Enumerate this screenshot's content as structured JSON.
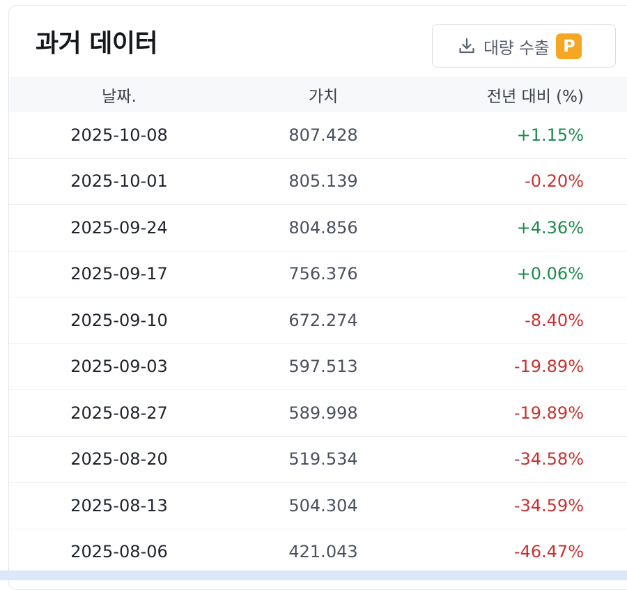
{
  "card": {
    "title": "과거 데이터",
    "export_button": {
      "label": "대량 수출",
      "badge": "P",
      "icon": "download-icon",
      "badge_color": "#f5a623"
    }
  },
  "table": {
    "headers": {
      "date": "날짜.",
      "value": "가치",
      "change": "전년 대비 (%)"
    },
    "rows": [
      {
        "date": "2025-10-08",
        "value": "807.428",
        "change": "+1.15%",
        "direction": "pos"
      },
      {
        "date": "2025-10-01",
        "value": "805.139",
        "change": "-0.20%",
        "direction": "neg"
      },
      {
        "date": "2025-09-24",
        "value": "804.856",
        "change": "+4.36%",
        "direction": "pos"
      },
      {
        "date": "2025-09-17",
        "value": "756.376",
        "change": "+0.06%",
        "direction": "pos"
      },
      {
        "date": "2025-09-10",
        "value": "672.274",
        "change": "-8.40%",
        "direction": "neg"
      },
      {
        "date": "2025-09-03",
        "value": "597.513",
        "change": "-19.89%",
        "direction": "neg"
      },
      {
        "date": "2025-08-27",
        "value": "589.998",
        "change": "-19.89%",
        "direction": "neg"
      },
      {
        "date": "2025-08-20",
        "value": "519.534",
        "change": "-34.58%",
        "direction": "neg"
      },
      {
        "date": "2025-08-13",
        "value": "504.304",
        "change": "-34.59%",
        "direction": "neg"
      },
      {
        "date": "2025-08-06",
        "value": "421.043",
        "change": "-46.47%",
        "direction": "neg"
      }
    ]
  },
  "colors": {
    "positive": "#1e8a4c",
    "negative": "#c7322f"
  }
}
